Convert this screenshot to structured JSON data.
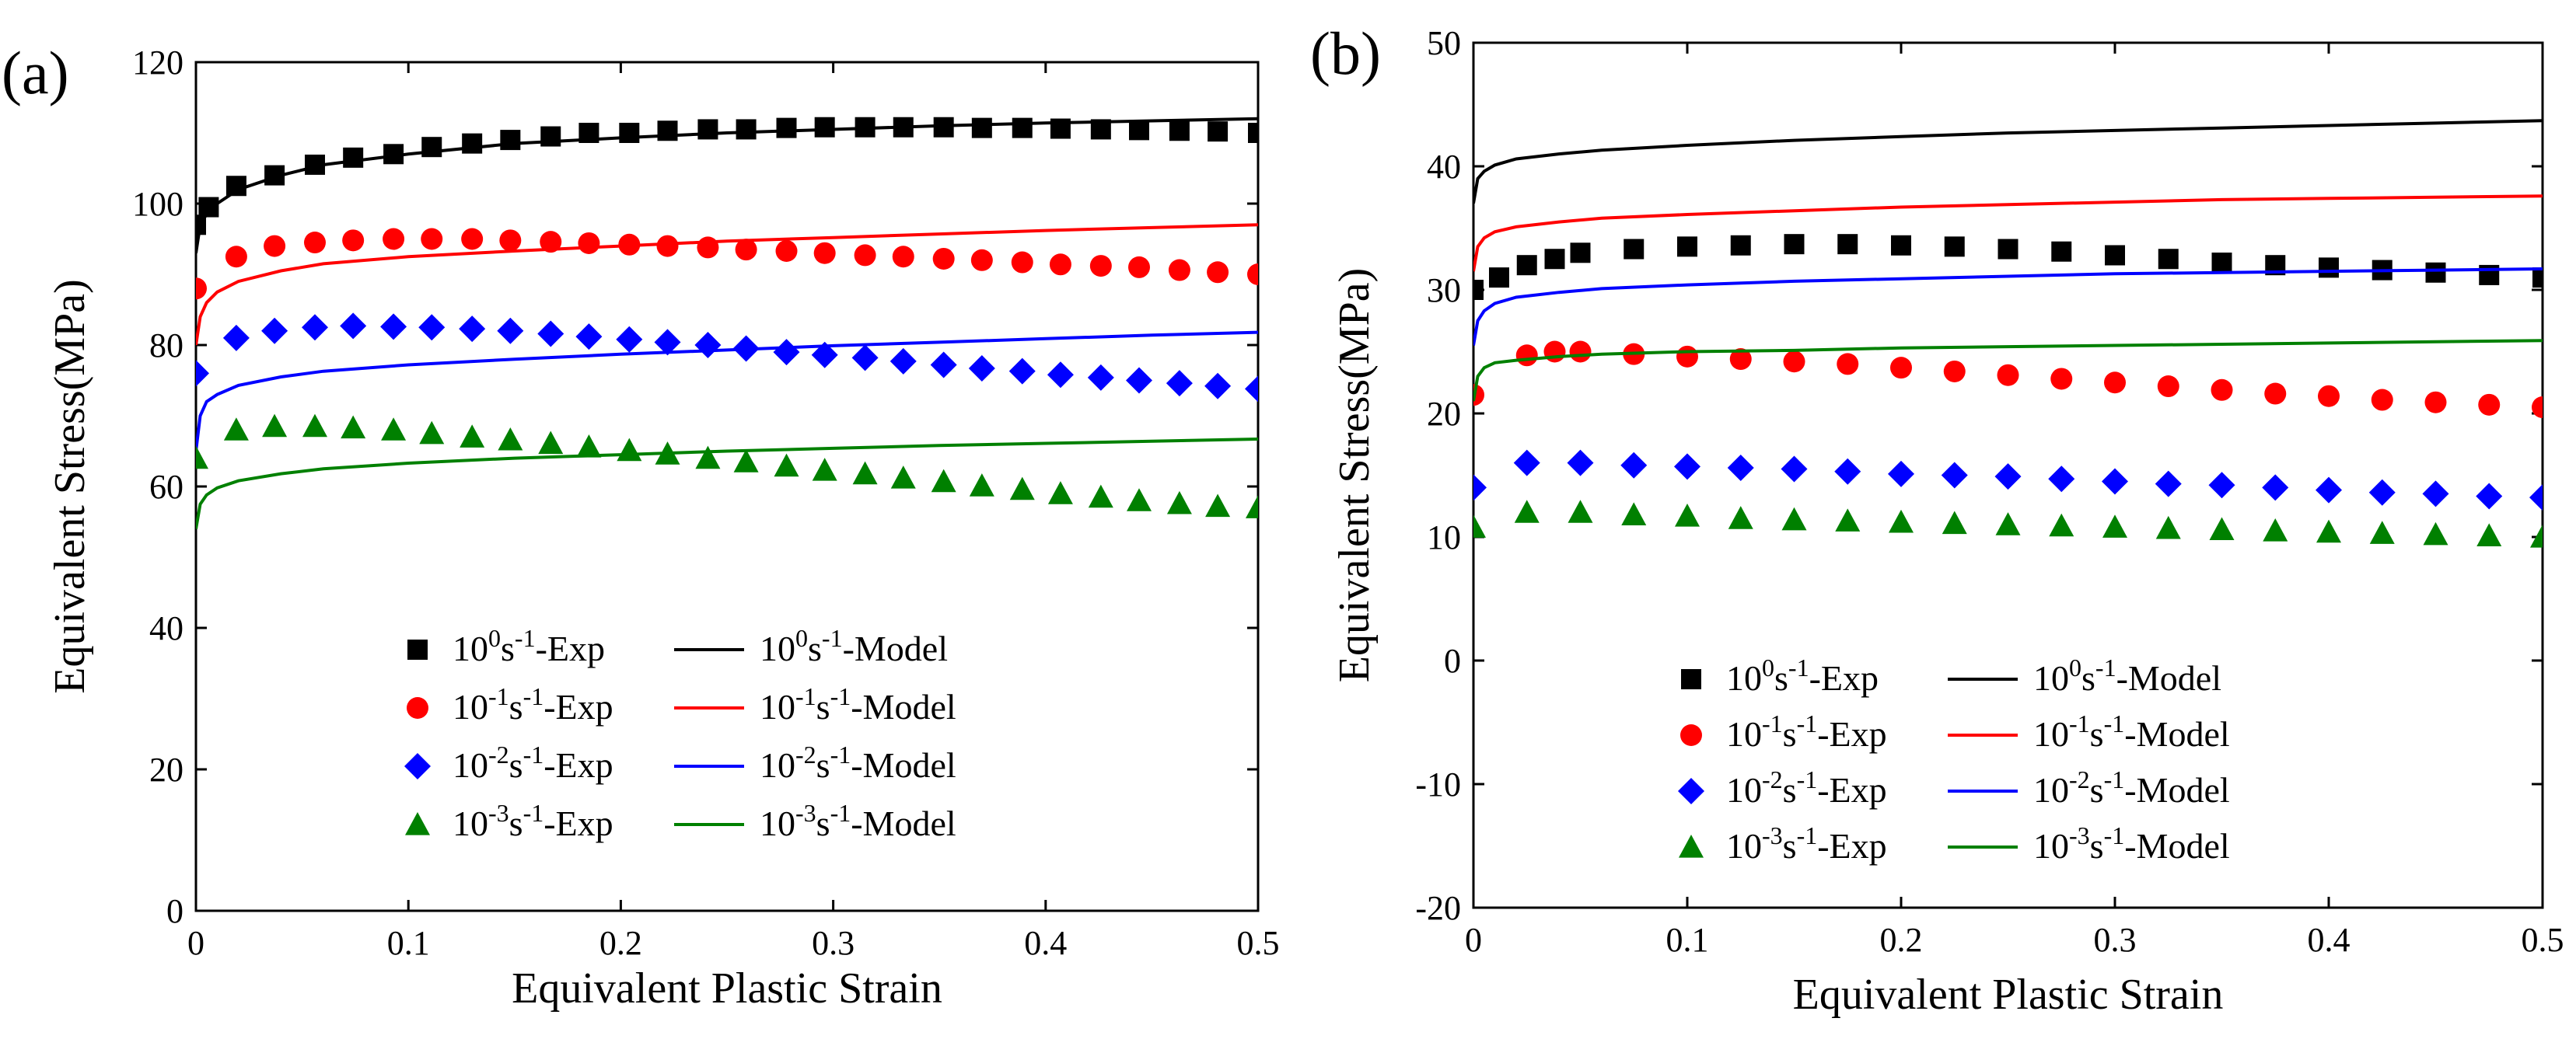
{
  "chart_data": [
    {
      "type": "line",
      "panel_label": "(a)",
      "xlabel": "Equivalent Plastic Strain",
      "ylabel": "Equivalent Stress(MPa)",
      "xlim": [
        0,
        0.5
      ],
      "ylim": [
        0,
        120
      ],
      "xticks": [
        "0",
        "0.1",
        "0.2",
        "0.3",
        "0.4",
        "0.5"
      ],
      "yticks": [
        "0",
        "20",
        "40",
        "60",
        "80",
        "100",
        "120"
      ],
      "legend_position": "lower-center",
      "series": [
        {
          "rate": "0",
          "exp_label_suffix": "-Exp",
          "model_label_suffix": "-Model",
          "color": "#000000",
          "marker": "square",
          "exp_x": [
            0,
            0.006,
            0.019,
            0.037,
            0.056,
            0.074,
            0.093,
            0.111,
            0.13,
            0.148,
            0.167,
            0.185,
            0.204,
            0.222,
            0.241,
            0.259,
            0.278,
            0.296,
            0.315,
            0.333,
            0.352,
            0.37,
            0.389,
            0.407,
            0.426,
            0.444,
            0.463,
            0.481,
            0.5
          ],
          "exp_y": [
            97,
            99.5,
            102.5,
            104,
            105.5,
            106.5,
            107,
            108,
            108.5,
            109,
            109.5,
            110,
            110,
            110.3,
            110.5,
            110.5,
            110.7,
            110.8,
            110.8,
            110.8,
            110.8,
            110.7,
            110.7,
            110.6,
            110.5,
            110.4,
            110.3,
            110.2,
            110
          ],
          "model_x": [
            0,
            0.002,
            0.005,
            0.01,
            0.02,
            0.04,
            0.06,
            0.1,
            0.15,
            0.2,
            0.25,
            0.3,
            0.35,
            0.4,
            0.45,
            0.5
          ],
          "model_y": [
            93,
            97,
            98.5,
            100,
            102,
            104,
            105.5,
            107,
            108.5,
            109.3,
            110,
            110.5,
            111,
            111.4,
            111.7,
            112
          ]
        },
        {
          "rate": "-1",
          "exp_label_suffix": "-Exp",
          "model_label_suffix": "-Model",
          "color": "#ff0000",
          "marker": "circle",
          "exp_x": [
            0,
            0.019,
            0.037,
            0.056,
            0.074,
            0.093,
            0.111,
            0.13,
            0.148,
            0.167,
            0.185,
            0.204,
            0.222,
            0.241,
            0.259,
            0.278,
            0.296,
            0.315,
            0.333,
            0.352,
            0.37,
            0.389,
            0.407,
            0.426,
            0.444,
            0.463,
            0.481,
            0.5
          ],
          "exp_y": [
            88,
            92.5,
            94,
            94.5,
            94.8,
            95,
            95,
            95,
            94.8,
            94.6,
            94.4,
            94.2,
            94,
            93.8,
            93.5,
            93.3,
            93,
            92.7,
            92.5,
            92.2,
            92,
            91.7,
            91.4,
            91.2,
            91,
            90.6,
            90.3,
            90
          ],
          "model_x": [
            0,
            0.002,
            0.005,
            0.01,
            0.02,
            0.04,
            0.06,
            0.1,
            0.15,
            0.2,
            0.25,
            0.3,
            0.35,
            0.4,
            0.45,
            0.5
          ],
          "model_y": [
            80,
            84,
            86,
            87.5,
            89,
            90.5,
            91.5,
            92.5,
            93.3,
            94,
            94.7,
            95.2,
            95.7,
            96.2,
            96.6,
            97
          ]
        },
        {
          "rate": "-2",
          "exp_label_suffix": "-Exp",
          "model_label_suffix": "-Model",
          "color": "#0000ff",
          "marker": "diamond",
          "exp_x": [
            0,
            0.019,
            0.037,
            0.056,
            0.074,
            0.093,
            0.111,
            0.13,
            0.148,
            0.167,
            0.185,
            0.204,
            0.222,
            0.241,
            0.259,
            0.278,
            0.296,
            0.315,
            0.333,
            0.352,
            0.37,
            0.389,
            0.407,
            0.426,
            0.444,
            0.463,
            0.481,
            0.5
          ],
          "exp_y": [
            76,
            81,
            82,
            82.5,
            82.7,
            82.6,
            82.5,
            82.3,
            82,
            81.6,
            81.2,
            80.8,
            80.4,
            80,
            79.5,
            79,
            78.6,
            78.2,
            77.7,
            77.2,
            76.7,
            76.3,
            75.8,
            75.4,
            75,
            74.6,
            74.2,
            73.8
          ],
          "model_x": [
            0,
            0.002,
            0.005,
            0.01,
            0.02,
            0.04,
            0.06,
            0.1,
            0.15,
            0.2,
            0.25,
            0.3,
            0.35,
            0.4,
            0.45,
            0.5
          ],
          "model_y": [
            65,
            70,
            72,
            73,
            74.3,
            75.5,
            76.3,
            77.2,
            78,
            78.7,
            79.3,
            79.9,
            80.4,
            80.9,
            81.4,
            81.8
          ]
        },
        {
          "rate": "-3",
          "exp_label_suffix": "-Exp",
          "model_label_suffix": "-Model",
          "color": "#008000",
          "marker": "triangle",
          "exp_x": [
            0,
            0.019,
            0.037,
            0.056,
            0.074,
            0.093,
            0.111,
            0.13,
            0.148,
            0.167,
            0.185,
            0.204,
            0.222,
            0.241,
            0.259,
            0.278,
            0.296,
            0.315,
            0.333,
            0.352,
            0.37,
            0.389,
            0.407,
            0.426,
            0.444,
            0.463,
            0.481,
            0.5
          ],
          "exp_y": [
            64,
            68,
            68.5,
            68.5,
            68.3,
            68,
            67.5,
            67,
            66.6,
            66.1,
            65.6,
            65.1,
            64.6,
            64,
            63.5,
            62.9,
            62.3,
            61.8,
            61.2,
            60.7,
            60.1,
            59.6,
            59,
            58.5,
            58,
            57.6,
            57.2,
            57
          ],
          "model_x": [
            0,
            0.002,
            0.005,
            0.01,
            0.02,
            0.04,
            0.06,
            0.1,
            0.15,
            0.2,
            0.25,
            0.3,
            0.35,
            0.4,
            0.45,
            0.5
          ],
          "model_y": [
            54,
            57.5,
            58.8,
            59.8,
            60.8,
            61.8,
            62.5,
            63.3,
            64,
            64.5,
            65,
            65.4,
            65.8,
            66.1,
            66.4,
            66.7
          ]
        }
      ]
    },
    {
      "type": "line",
      "panel_label": "(b)",
      "xlabel": "Equivalent Plastic Strain",
      "ylabel": "Equivalent Stress(MPa)",
      "xlim": [
        0,
        0.5
      ],
      "ylim": [
        -20,
        50
      ],
      "xticks": [
        "0",
        "0.1",
        "0.2",
        "0.3",
        "0.4",
        "0.5"
      ],
      "yticks": [
        "-20",
        "-10",
        "0",
        "10",
        "20",
        "30",
        "40",
        "50"
      ],
      "legend_position": "lower-center",
      "series": [
        {
          "rate": "0",
          "exp_label_suffix": "-Exp",
          "model_label_suffix": "-Model",
          "color": "#000000",
          "marker": "square",
          "exp_x": [
            0,
            0.012,
            0.025,
            0.038,
            0.05,
            0.075,
            0.1,
            0.125,
            0.15,
            0.175,
            0.2,
            0.225,
            0.25,
            0.275,
            0.3,
            0.325,
            0.35,
            0.375,
            0.4,
            0.425,
            0.45,
            0.475,
            0.5
          ],
          "exp_y": [
            30,
            31,
            32,
            32.5,
            33,
            33.3,
            33.5,
            33.6,
            33.7,
            33.7,
            33.6,
            33.5,
            33.3,
            33.1,
            32.8,
            32.5,
            32.2,
            32,
            31.8,
            31.6,
            31.4,
            31.2,
            31
          ],
          "model_x": [
            0,
            0.002,
            0.005,
            0.01,
            0.02,
            0.04,
            0.06,
            0.1,
            0.15,
            0.2,
            0.25,
            0.3,
            0.35,
            0.4,
            0.45,
            0.5
          ],
          "model_y": [
            37,
            39,
            39.6,
            40.1,
            40.6,
            41,
            41.3,
            41.7,
            42.1,
            42.4,
            42.7,
            42.9,
            43.1,
            43.3,
            43.5,
            43.7
          ]
        },
        {
          "rate": "-1",
          "exp_label_suffix": "-Exp",
          "model_label_suffix": "-Model",
          "color": "#ff0000",
          "marker": "circle",
          "exp_x": [
            0,
            0.025,
            0.038,
            0.05,
            0.075,
            0.1,
            0.125,
            0.15,
            0.175,
            0.2,
            0.225,
            0.25,
            0.275,
            0.3,
            0.325,
            0.35,
            0.375,
            0.4,
            0.425,
            0.45,
            0.475,
            0.5
          ],
          "exp_y": [
            21.5,
            24.7,
            25,
            25,
            24.8,
            24.6,
            24.4,
            24.2,
            24,
            23.7,
            23.4,
            23.1,
            22.8,
            22.5,
            22.2,
            21.9,
            21.6,
            21.4,
            21.1,
            20.9,
            20.7,
            20.5
          ],
          "model_x": [
            0,
            0.002,
            0.005,
            0.01,
            0.02,
            0.04,
            0.06,
            0.1,
            0.15,
            0.2,
            0.25,
            0.3,
            0.35,
            0.4,
            0.45,
            0.5
          ],
          "model_y": [
            31.5,
            33.5,
            34.2,
            34.7,
            35.1,
            35.5,
            35.8,
            36.1,
            36.4,
            36.7,
            36.9,
            37.1,
            37.3,
            37.4,
            37.5,
            37.6
          ]
        },
        {
          "rate": "-2",
          "exp_label_suffix": "-Exp",
          "model_label_suffix": "-Model",
          "color": "#0000ff",
          "marker": "diamond",
          "exp_x": [
            0,
            0.025,
            0.05,
            0.075,
            0.1,
            0.125,
            0.15,
            0.175,
            0.2,
            0.225,
            0.25,
            0.275,
            0.3,
            0.325,
            0.35,
            0.375,
            0.4,
            0.425,
            0.45,
            0.475,
            0.5
          ],
          "exp_y": [
            14,
            16,
            16,
            15.8,
            15.7,
            15.6,
            15.5,
            15.3,
            15.1,
            15,
            14.9,
            14.7,
            14.5,
            14.3,
            14.2,
            14,
            13.8,
            13.6,
            13.5,
            13.3,
            13.2
          ],
          "model_x": [
            0,
            0.002,
            0.005,
            0.01,
            0.02,
            0.04,
            0.06,
            0.1,
            0.15,
            0.2,
            0.25,
            0.3,
            0.35,
            0.4,
            0.45,
            0.5
          ],
          "model_y": [
            25.5,
            27.5,
            28.3,
            28.9,
            29.4,
            29.8,
            30.1,
            30.4,
            30.7,
            30.9,
            31.1,
            31.3,
            31.4,
            31.5,
            31.6,
            31.7
          ]
        },
        {
          "rate": "-3",
          "exp_label_suffix": "-Exp",
          "model_label_suffix": "-Model",
          "color": "#008000",
          "marker": "triangle",
          "exp_x": [
            0,
            0.025,
            0.05,
            0.075,
            0.1,
            0.125,
            0.15,
            0.175,
            0.2,
            0.225,
            0.25,
            0.275,
            0.3,
            0.325,
            0.35,
            0.375,
            0.4,
            0.425,
            0.45,
            0.475,
            0.5
          ],
          "exp_y": [
            10.8,
            12,
            12,
            11.8,
            11.7,
            11.5,
            11.4,
            11.3,
            11.2,
            11.1,
            11,
            10.9,
            10.8,
            10.7,
            10.6,
            10.5,
            10.4,
            10.3,
            10.2,
            10.1,
            10
          ],
          "model_x": [
            0,
            0.002,
            0.005,
            0.01,
            0.02,
            0.04,
            0.06,
            0.1,
            0.15,
            0.2,
            0.25,
            0.3,
            0.35,
            0.4,
            0.45,
            0.5
          ],
          "model_y": [
            21,
            23,
            23.7,
            24.1,
            24.3,
            24.6,
            24.8,
            25,
            25.1,
            25.3,
            25.4,
            25.5,
            25.6,
            25.7,
            25.8,
            25.9
          ]
        }
      ]
    }
  ]
}
